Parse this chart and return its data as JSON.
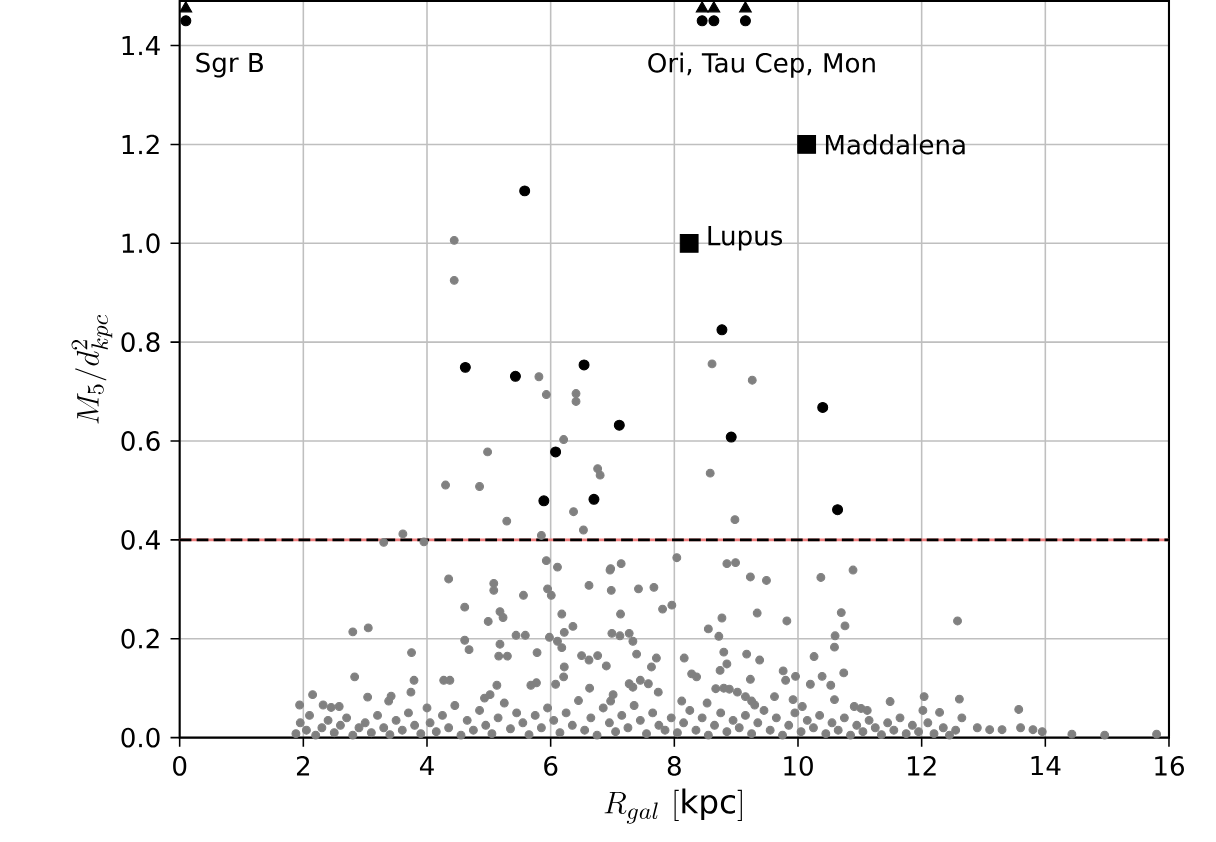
{
  "chart_data": {
    "type": "scatter",
    "xlabel": "R_{gal}\\ [\\mathrm{kpc}]",
    "ylabel": "M_5/d^2_{kpc}",
    "xlim": [
      0,
      16
    ],
    "ylim": [
      0,
      1.49
    ],
    "xticks": [
      0,
      2,
      4,
      6,
      8,
      10,
      12,
      14,
      16
    ],
    "yticks": [
      {
        "value": 0,
        "label": "0.0"
      },
      {
        "value": 0.2,
        "label": "0.2"
      },
      {
        "value": 0.4,
        "label": "0.4"
      },
      {
        "value": 0.6,
        "label": "0.6"
      },
      {
        "value": 0.8,
        "label": "0.8"
      },
      {
        "value": 1.0,
        "label": "1.0"
      },
      {
        "value": 1.2,
        "label": "1.2"
      },
      {
        "value": 1.4,
        "label": "1.4"
      }
    ],
    "grid": true,
    "ref_lines": [
      {
        "axis": "y",
        "value": 0.4,
        "color": "#f08080",
        "line_style": "solid"
      },
      {
        "axis": "y",
        "value": 0.4,
        "color": "#000000",
        "line_style": "dashed"
      }
    ],
    "annotations": [
      "Sgr B",
      "Ori, Tau Cep, Mon",
      {
        "text": "Lupus",
        "x": 8.46,
        "y": 1.01
      },
      {
        "text": "Maddalena",
        "x": 10.36,
        "y": 1.2
      }
    ],
    "series": [
      {
        "color": "#808080",
        "marker": "circle",
        "x": [
          4.44,
          4.44,
          5.81,
          5.93,
          6.41,
          6.41,
          8.61,
          9.26,
          6.21,
          4.98,
          6.76,
          6.8,
          8.58,
          4.3,
          4.85,
          6.37,
          5.29,
          8.98,
          6.53,
          5.85,
          3.61,
          3.3,
          3.95,
          8.04,
          5.93,
          6.11,
          7.14,
          6.97,
          8.85,
          8.99,
          10.89,
          4.35,
          5.08,
          5.08,
          4.61,
          5.56,
          5.95,
          6.01,
          6.62,
          6.96,
          6.98,
          7.42,
          7.67,
          7.81,
          7.96,
          7.13,
          5.18,
          5.23,
          4.99,
          6.18,
          5.44,
          5.59,
          5.98,
          6.11,
          6.22,
          6.36,
          2.8,
          3.05,
          4.61,
          4.68,
          5.18,
          5.16,
          5.3,
          5.78,
          6.18,
          6.5,
          6.62,
          6.76,
          6.9,
          6.99,
          7.12,
          7.27,
          7.33,
          7.39,
          7.71,
          7.63,
          8.16,
          3.75,
          2.83,
          3.04,
          3.42,
          3.38,
          3.79,
          3.74,
          4.27,
          4.37,
          1.94,
          2.15,
          2.32,
          2.45,
          2.58,
          5.68,
          5.77,
          5.13,
          5.02,
          4.93,
          6.63,
          7.01,
          6.97,
          7.27,
          7.33,
          7.74,
          6.21,
          6.08,
          8.28,
          8.36,
          6.22,
          7.45,
          7.58,
          9.23,
          9.49,
          10.37,
          8.77,
          9.34,
          9.82,
          10.7,
          10.76,
          10.6,
          10.59,
          12.58,
          8.55,
          8.72,
          8.8,
          8.74,
          8.85,
          9.17,
          9.38,
          9.23,
          9.76,
          9.8,
          9.96,
          10.26,
          10.2,
          10.39,
          10.53,
          10.74,
          8.67,
          8.8,
          8.89,
          9.02,
          9.15,
          9.25,
          9.3,
          8.12,
          8.53,
          9.62,
          9.92,
          10.07,
          10.59,
          10.91,
          11.02,
          11.12,
          11.49,
          12.04,
          12.29,
          12.02,
          12.61,
          13.57,
          14.43,
          14.96,
          15.8,
          12.65,
          12.9,
          13.1,
          13.3,
          13.6,
          13.8,
          13.95,
          1.88,
          1.95,
          2.05,
          2.1,
          2.2,
          2.3,
          2.4,
          2.5,
          2.6,
          2.7,
          2.8,
          2.9,
          3.0,
          3.1,
          3.2,
          3.3,
          3.4,
          3.5,
          3.6,
          3.7,
          3.8,
          3.9,
          4.0,
          4.05,
          4.15,
          4.25,
          4.35,
          4.45,
          4.55,
          4.65,
          4.75,
          4.85,
          4.95,
          5.05,
          5.15,
          5.25,
          5.35,
          5.45,
          5.55,
          5.65,
          5.75,
          5.85,
          5.95,
          6.05,
          6.15,
          6.25,
          6.35,
          6.45,
          6.55,
          6.65,
          6.75,
          6.85,
          6.95,
          7.05,
          7.15,
          7.25,
          7.35,
          7.45,
          7.55,
          7.65,
          7.75,
          7.85,
          7.95,
          8.05,
          8.15,
          8.25,
          8.35,
          8.45,
          8.55,
          8.65,
          8.75,
          8.85,
          8.95,
          9.05,
          9.15,
          9.25,
          9.35,
          9.45,
          9.55,
          9.65,
          9.75,
          9.85,
          9.95,
          10.05,
          10.15,
          10.25,
          10.35,
          10.45,
          10.55,
          10.65,
          10.75,
          10.85,
          10.95,
          11.05,
          11.15,
          11.25,
          11.35,
          11.45,
          11.55,
          11.65,
          11.75,
          11.85,
          11.95,
          12.1,
          12.2,
          12.35,
          12.45,
          12.55
        ],
        "values": [
          1.006,
          0.925,
          0.73,
          0.694,
          0.696,
          0.68,
          0.756,
          0.723,
          0.603,
          0.578,
          0.544,
          0.531,
          0.535,
          0.511,
          0.508,
          0.457,
          0.438,
          0.441,
          0.42,
          0.409,
          0.412,
          0.395,
          0.396,
          0.364,
          0.358,
          0.345,
          0.352,
          0.342,
          0.352,
          0.354,
          0.339,
          0.321,
          0.312,
          0.298,
          0.264,
          0.288,
          0.301,
          0.288,
          0.308,
          0.339,
          0.298,
          0.301,
          0.304,
          0.26,
          0.268,
          0.25,
          0.255,
          0.243,
          0.235,
          0.25,
          0.207,
          0.207,
          0.203,
          0.195,
          0.213,
          0.225,
          0.214,
          0.222,
          0.197,
          0.178,
          0.189,
          0.165,
          0.165,
          0.172,
          0.182,
          0.166,
          0.157,
          0.166,
          0.145,
          0.211,
          0.206,
          0.211,
          0.195,
          0.169,
          0.161,
          0.143,
          0.161,
          0.172,
          0.123,
          0.082,
          0.084,
          0.074,
          0.116,
          0.092,
          0.116,
          0.116,
          0.066,
          0.087,
          0.066,
          0.061,
          0.063,
          0.106,
          0.111,
          0.106,
          0.087,
          0.08,
          0.1,
          0.087,
          0.074,
          0.109,
          0.102,
          0.092,
          0.123,
          0.108,
          0.129,
          0.123,
          0.143,
          0.116,
          0.109,
          0.325,
          0.318,
          0.324,
          0.242,
          0.252,
          0.236,
          0.253,
          0.226,
          0.206,
          0.183,
          0.236,
          0.22,
          0.205,
          0.173,
          0.136,
          0.149,
          0.169,
          0.157,
          0.118,
          0.135,
          0.116,
          0.124,
          0.164,
          0.108,
          0.124,
          0.106,
          0.131,
          0.099,
          0.1,
          0.098,
          0.092,
          0.083,
          0.074,
          0.066,
          0.074,
          0.07,
          0.083,
          0.077,
          0.063,
          0.077,
          0.063,
          0.059,
          0.055,
          0.073,
          0.083,
          0.051,
          0.055,
          0.078,
          0.057,
          0.007,
          0.005,
          0.007,
          0.04,
          0.02,
          0.016,
          0.016,
          0.02,
          0.016,
          0.012,
          0.008,
          0.03,
          0.015,
          0.045,
          0.005,
          0.02,
          0.035,
          0.01,
          0.025,
          0.04,
          0.005,
          0.02,
          0.03,
          0.01,
          0.045,
          0.02,
          0.006,
          0.035,
          0.015,
          0.05,
          0.025,
          0.008,
          0.06,
          0.03,
          0.012,
          0.045,
          0.02,
          0.065,
          0.005,
          0.035,
          0.015,
          0.055,
          0.025,
          0.008,
          0.04,
          0.07,
          0.018,
          0.05,
          0.03,
          0.006,
          0.045,
          0.02,
          0.06,
          0.035,
          0.01,
          0.05,
          0.025,
          0.075,
          0.015,
          0.04,
          0.005,
          0.06,
          0.03,
          0.012,
          0.045,
          0.02,
          0.065,
          0.035,
          0.008,
          0.05,
          0.025,
          0.015,
          0.04,
          0.01,
          0.03,
          0.055,
          0.015,
          0.04,
          0.005,
          0.025,
          0.05,
          0.012,
          0.035,
          0.02,
          0.045,
          0.008,
          0.03,
          0.055,
          0.015,
          0.04,
          0.005,
          0.025,
          0.05,
          0.012,
          0.035,
          0.02,
          0.045,
          0.008,
          0.03,
          0.015,
          0.04,
          0.005,
          0.025,
          0.012,
          0.035,
          0.02,
          0.006,
          0.03,
          0.015,
          0.04,
          0.008,
          0.025,
          0.012,
          0.03,
          0.008,
          0.02,
          0.005,
          0.015
        ]
      },
      {
        "color": "#000000",
        "marker": "circle",
        "x": [
          5.58,
          8.77,
          4.62,
          5.43,
          6.54,
          7.11,
          8.92,
          10.4,
          6.08,
          5.89,
          6.7,
          10.64,
          0.1,
          8.45,
          8.64,
          9.15
        ],
        "values": [
          1.106,
          0.825,
          0.749,
          0.731,
          0.754,
          0.632,
          0.608,
          0.668,
          0.578,
          0.479,
          0.482,
          0.461,
          1.45,
          1.45,
          1.45,
          1.45
        ]
      },
      {
        "color": "#000000",
        "marker": "square",
        "x": [
          8.24,
          10.14
        ],
        "values": [
          1.0,
          1.2
        ]
      },
      {
        "color": "#000000",
        "marker": "triangle",
        "x": [
          0.1,
          8.45,
          8.64,
          9.15
        ],
        "values": [
          1.475,
          1.475,
          1.475,
          1.475
        ]
      }
    ]
  }
}
